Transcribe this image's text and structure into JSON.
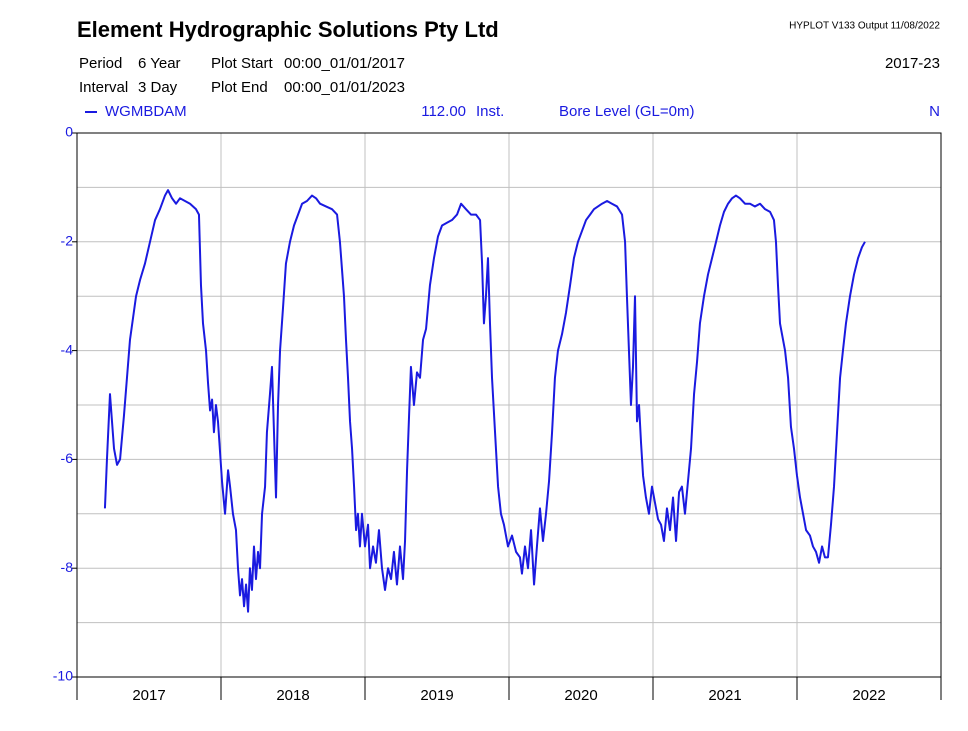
{
  "chart_data": {
    "type": "line",
    "title": "Element Hydrographic Solutions Pty Ltd",
    "program_info": "HYPLOT V133  Output 11/08/2022",
    "period_label": "Period",
    "period": "6 Year",
    "plot_start_label": "Plot Start",
    "plot_start": "00:00_01/01/2017",
    "span": "2017-23",
    "interval_label": "Interval",
    "interval": "3 Day",
    "plot_end_label": "Plot End",
    "plot_end": "00:00_01/01/2023",
    "categories": [
      "2017",
      "2018",
      "2019",
      "2020",
      "2021",
      "2022"
    ],
    "xlim": [
      2017,
      2023
    ],
    "xticks": [
      2017,
      2018,
      2019,
      2020,
      2021,
      2022,
      2023
    ],
    "ylim": [
      -10,
      0
    ],
    "yticks": [
      0,
      -2,
      -4,
      -6,
      -8,
      -10
    ],
    "y_minor_ticks": [
      -1,
      -3,
      -5,
      -7,
      -9
    ],
    "grid": true,
    "x": [
      2017.194,
      2017.208,
      2017.229,
      2017.243,
      2017.257,
      2017.278,
      2017.299,
      2017.326,
      2017.347,
      2017.368,
      2017.389,
      2017.41,
      2017.438,
      2017.472,
      2017.507,
      2017.542,
      2017.576,
      2017.611,
      2017.632,
      2017.66,
      2017.688,
      2017.715,
      2017.75,
      2017.785,
      2017.826,
      2017.847,
      2017.861,
      2017.875,
      2017.896,
      2017.91,
      2017.924,
      2017.938,
      2017.951,
      2017.965,
      2017.979,
      2018.007,
      2018.028,
      2018.049,
      2018.063,
      2018.083,
      2018.104,
      2018.118,
      2018.132,
      2018.146,
      2018.16,
      2018.174,
      2018.188,
      2018.201,
      2018.215,
      2018.229,
      2018.243,
      2018.257,
      2018.271,
      2018.285,
      2018.306,
      2018.319,
      2018.34,
      2018.354,
      2018.368,
      2018.382,
      2018.396,
      2018.41,
      2018.431,
      2018.451,
      2018.479,
      2018.507,
      2018.535,
      2018.563,
      2018.597,
      2018.632,
      2018.66,
      2018.688,
      2018.729,
      2018.771,
      2018.806,
      2018.826,
      2018.84,
      2018.854,
      2018.868,
      2018.882,
      2018.896,
      2018.91,
      2018.924,
      2018.938,
      2018.951,
      2018.965,
      2018.979,
      2019.0,
      2019.021,
      2019.035,
      2019.056,
      2019.076,
      2019.097,
      2019.118,
      2019.139,
      2019.16,
      2019.181,
      2019.201,
      2019.222,
      2019.243,
      2019.264,
      2019.278,
      2019.292,
      2019.306,
      2019.319,
      2019.34,
      2019.361,
      2019.382,
      2019.403,
      2019.424,
      2019.451,
      2019.479,
      2019.507,
      2019.535,
      2019.569,
      2019.604,
      2019.639,
      2019.667,
      2019.701,
      2019.736,
      2019.771,
      2019.799,
      2019.813,
      2019.826,
      2019.84,
      2019.854,
      2019.868,
      2019.882,
      2019.903,
      2019.924,
      2019.944,
      2019.965,
      2019.993,
      2020.021,
      2020.049,
      2020.076,
      2020.09,
      2020.111,
      2020.132,
      2020.153,
      2020.174,
      2020.194,
      2020.215,
      2020.236,
      2020.257,
      2020.278,
      2020.299,
      2020.319,
      2020.34,
      2020.368,
      2020.396,
      2020.424,
      2020.451,
      2020.479,
      2020.507,
      2020.535,
      2020.563,
      2020.59,
      2020.618,
      2020.646,
      2020.681,
      2020.715,
      2020.75,
      2020.785,
      2020.806,
      2020.819,
      2020.833,
      2020.847,
      2020.861,
      2020.875,
      2020.889,
      2020.903,
      2020.917,
      2020.931,
      2020.951,
      2020.972,
      2020.993,
      2021.014,
      2021.035,
      2021.056,
      2021.076,
      2021.097,
      2021.118,
      2021.139,
      2021.16,
      2021.181,
      2021.201,
      2021.222,
      2021.243,
      2021.264,
      2021.285,
      2021.306,
      2021.326,
      2021.354,
      2021.382,
      2021.41,
      2021.438,
      2021.465,
      2021.493,
      2021.521,
      2021.549,
      2021.576,
      2021.604,
      2021.639,
      2021.674,
      2021.708,
      2021.743,
      2021.778,
      2021.813,
      2021.84,
      2021.854,
      2021.868,
      2021.882,
      2021.896,
      2021.917,
      2021.938,
      2021.958,
      2021.979,
      2022.0,
      2022.021,
      2022.042,
      2022.063,
      2022.09,
      2022.111,
      2022.132,
      2022.153,
      2022.174,
      2022.194,
      2022.215,
      2022.236,
      2022.257,
      2022.278,
      2022.299,
      2022.319,
      2022.34,
      2022.368,
      2022.396,
      2022.424,
      2022.451,
      2022.472
    ],
    "series": [
      {
        "name": "WGMBDAM",
        "color": "#1a1ae0",
        "variable_code": "112.00",
        "statistic": "Inst.",
        "variable": "Bore Level (GL=0m)",
        "quality": "N",
        "values": [
          -6.9,
          -6.0,
          -4.8,
          -5.3,
          -5.8,
          -6.1,
          -6.0,
          -5.2,
          -4.5,
          -3.8,
          -3.4,
          -3.0,
          -2.7,
          -2.4,
          -2.0,
          -1.6,
          -1.4,
          -1.15,
          -1.05,
          -1.2,
          -1.3,
          -1.2,
          -1.25,
          -1.3,
          -1.4,
          -1.5,
          -2.8,
          -3.5,
          -4.0,
          -4.6,
          -5.1,
          -4.9,
          -5.5,
          -5.0,
          -5.3,
          -6.4,
          -7.0,
          -6.2,
          -6.5,
          -7.0,
          -7.3,
          -8.0,
          -8.5,
          -8.2,
          -8.7,
          -8.3,
          -8.8,
          -8.0,
          -8.4,
          -7.6,
          -8.2,
          -7.7,
          -8.0,
          -7.0,
          -6.5,
          -5.5,
          -4.8,
          -4.3,
          -5.5,
          -6.7,
          -5.0,
          -4.0,
          -3.2,
          -2.4,
          -2.0,
          -1.7,
          -1.5,
          -1.3,
          -1.25,
          -1.15,
          -1.2,
          -1.3,
          -1.35,
          -1.4,
          -1.5,
          -2.0,
          -2.5,
          -3.0,
          -3.8,
          -4.5,
          -5.3,
          -5.8,
          -6.5,
          -7.3,
          -7.0,
          -7.6,
          -7.0,
          -7.6,
          -7.2,
          -8.0,
          -7.6,
          -7.9,
          -7.3,
          -8.0,
          -8.4,
          -8.0,
          -8.2,
          -7.7,
          -8.3,
          -7.6,
          -8.2,
          -7.5,
          -6.2,
          -5.2,
          -4.3,
          -5.0,
          -4.4,
          -4.5,
          -3.8,
          -3.6,
          -2.8,
          -2.3,
          -1.9,
          -1.7,
          -1.65,
          -1.6,
          -1.5,
          -1.3,
          -1.4,
          -1.5,
          -1.5,
          -1.6,
          -2.4,
          -3.5,
          -3.0,
          -2.3,
          -3.5,
          -4.5,
          -5.5,
          -6.5,
          -7.0,
          -7.2,
          -7.6,
          -7.4,
          -7.7,
          -7.8,
          -8.1,
          -7.6,
          -8.0,
          -7.3,
          -8.3,
          -7.6,
          -6.9,
          -7.5,
          -7.0,
          -6.4,
          -5.5,
          -4.5,
          -4.0,
          -3.7,
          -3.3,
          -2.8,
          -2.3,
          -2.0,
          -1.8,
          -1.6,
          -1.5,
          -1.4,
          -1.35,
          -1.3,
          -1.25,
          -1.3,
          -1.35,
          -1.5,
          -2.0,
          -3.0,
          -4.0,
          -5.0,
          -4.3,
          -3.0,
          -5.3,
          -5.0,
          -5.7,
          -6.3,
          -6.7,
          -7.0,
          -6.5,
          -6.8,
          -7.1,
          -7.2,
          -7.5,
          -6.9,
          -7.3,
          -6.7,
          -7.5,
          -6.6,
          -6.5,
          -7.0,
          -6.4,
          -5.8,
          -4.8,
          -4.2,
          -3.5,
          -3.0,
          -2.6,
          -2.3,
          -2.0,
          -1.7,
          -1.45,
          -1.3,
          -1.2,
          -1.15,
          -1.2,
          -1.3,
          -1.3,
          -1.35,
          -1.3,
          -1.4,
          -1.45,
          -1.6,
          -2.0,
          -2.8,
          -3.5,
          -3.7,
          -4.0,
          -4.5,
          -5.4,
          -5.8,
          -6.3,
          -6.7,
          -7.0,
          -7.3,
          -7.4,
          -7.6,
          -7.7,
          -7.9,
          -7.6,
          -7.8,
          -7.8,
          -7.2,
          -6.5,
          -5.5,
          -4.5,
          -4.0,
          -3.5,
          -3.0,
          -2.6,
          -2.3,
          -2.1,
          -2.0
        ]
      }
    ]
  }
}
